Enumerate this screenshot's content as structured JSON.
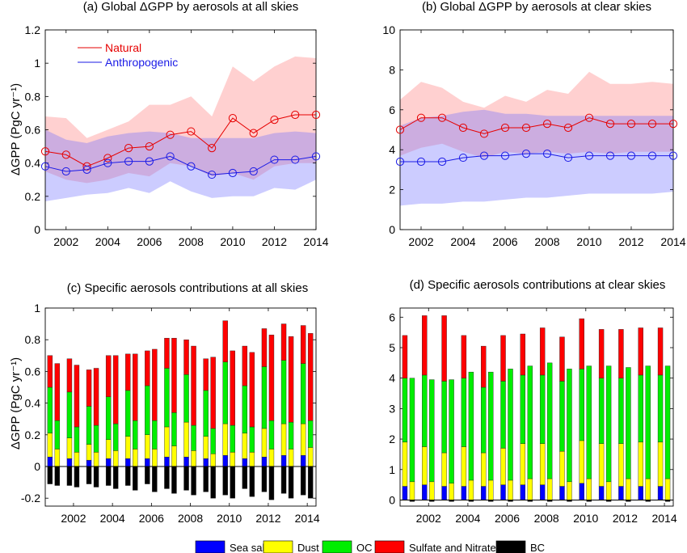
{
  "figure": {
    "legend_items": [
      {
        "label": "Sea salt",
        "color": "#0000ff"
      },
      {
        "label": "Dust",
        "color": "#ffff00"
      },
      {
        "label": "OC",
        "color": "#00ee00"
      },
      {
        "label": "Sulfate and Nitrate",
        "color": "#ff0000"
      },
      {
        "label": "BC",
        "color": "#000000"
      }
    ]
  },
  "chart_data": [
    {
      "panel": "a",
      "type": "line",
      "title": "(a) Global ΔGPP by aerosols at all skies",
      "ylabel": "ΔGPP (PgC yr⁻¹)",
      "xlabel": "",
      "xlim": [
        2001,
        2014
      ],
      "ylim": [
        0,
        1.2
      ],
      "xticks": [
        2002,
        2004,
        2006,
        2008,
        2010,
        2012,
        2014
      ],
      "yticks": [
        0,
        0.2,
        0.4,
        0.6,
        0.8,
        1,
        1.2
      ],
      "ytick_labels": [
        "0",
        "0.2",
        "0.4",
        "0.6",
        "0.8",
        "1",
        "1.2"
      ],
      "legend_position": "top-left",
      "x": [
        2001,
        2002,
        2003,
        2004,
        2005,
        2006,
        2007,
        2008,
        2009,
        2010,
        2011,
        2012,
        2013,
        2014
      ],
      "series": [
        {
          "name": "Natural",
          "color": "#e60000",
          "values": [
            0.47,
            0.45,
            0.38,
            0.43,
            0.49,
            0.5,
            0.57,
            0.59,
            0.49,
            0.67,
            0.58,
            0.66,
            0.69,
            0.69
          ],
          "upper": [
            0.68,
            0.67,
            0.55,
            0.6,
            0.65,
            0.75,
            0.75,
            0.8,
            0.68,
            0.98,
            0.89,
            0.98,
            1.04,
            1.03
          ],
          "lower": [
            0.35,
            0.3,
            0.28,
            0.3,
            0.34,
            0.32,
            0.4,
            0.38,
            0.32,
            0.34,
            0.3,
            0.38,
            0.4,
            0.4
          ]
        },
        {
          "name": "Anthropogenic",
          "color": "#1a1ae6",
          "values": [
            0.38,
            0.35,
            0.36,
            0.4,
            0.41,
            0.41,
            0.44,
            0.38,
            0.33,
            0.34,
            0.35,
            0.42,
            0.42,
            0.44
          ],
          "upper": [
            0.6,
            0.54,
            0.52,
            0.56,
            0.58,
            0.59,
            0.58,
            0.55,
            0.55,
            0.55,
            0.55,
            0.58,
            0.59,
            0.58
          ],
          "lower": [
            0.17,
            0.19,
            0.21,
            0.22,
            0.25,
            0.22,
            0.29,
            0.23,
            0.19,
            0.2,
            0.2,
            0.25,
            0.24,
            0.3
          ]
        }
      ]
    },
    {
      "panel": "b",
      "type": "line",
      "title": "(b) Global ΔGPP by aerosols at clear skies",
      "ylabel": "",
      "xlabel": "",
      "xlim": [
        2001,
        2014
      ],
      "ylim": [
        0,
        10
      ],
      "xticks": [
        2002,
        2004,
        2006,
        2008,
        2010,
        2012,
        2014
      ],
      "yticks": [
        0,
        2,
        4,
        6,
        8,
        10
      ],
      "ytick_labels": [
        "0",
        "2",
        "4",
        "6",
        "8",
        "10"
      ],
      "x": [
        2001,
        2002,
        2003,
        2004,
        2005,
        2006,
        2007,
        2008,
        2009,
        2010,
        2011,
        2012,
        2013,
        2014
      ],
      "series": [
        {
          "name": "Natural",
          "color": "#e60000",
          "values": [
            5.0,
            5.6,
            5.6,
            5.1,
            4.8,
            5.1,
            5.1,
            5.3,
            5.1,
            5.6,
            5.3,
            5.3,
            5.3,
            5.3
          ],
          "upper": [
            6.5,
            7.4,
            7.1,
            6.4,
            6.1,
            6.7,
            6.4,
            7.0,
            6.8,
            7.9,
            7.3,
            7.3,
            7.4,
            7.3
          ],
          "lower": [
            3.7,
            4.1,
            4.3,
            3.9,
            3.6,
            3.9,
            3.8,
            3.9,
            3.8,
            3.9,
            3.8,
            3.9,
            3.9,
            3.9
          ]
        },
        {
          "name": "Anthropogenic",
          "color": "#1a1ae6",
          "values": [
            3.4,
            3.4,
            3.4,
            3.6,
            3.7,
            3.7,
            3.8,
            3.8,
            3.6,
            3.7,
            3.7,
            3.7,
            3.7,
            3.7
          ],
          "upper": [
            5.2,
            5.6,
            5.7,
            5.9,
            6.0,
            5.8,
            5.8,
            5.7,
            5.7,
            5.7,
            5.7,
            5.7,
            5.7,
            5.7
          ],
          "lower": [
            1.2,
            1.3,
            1.3,
            1.4,
            1.4,
            1.5,
            1.6,
            1.6,
            1.7,
            1.8,
            1.8,
            1.8,
            1.8,
            1.9
          ]
        }
      ]
    },
    {
      "panel": "c",
      "type": "bar",
      "stacked": true,
      "title": "(c) Specific aerosols contributions at all skies",
      "ylabel": "ΔGPP (PgC yr⁻¹)",
      "xlabel": "",
      "xlim": [
        2000.55,
        2014.45
      ],
      "ylim": [
        -0.25,
        1.0
      ],
      "xticks": [
        2002,
        2004,
        2006,
        2008,
        2010,
        2012,
        2014
      ],
      "yticks": [
        -0.2,
        0,
        0.2,
        0.4,
        0.6,
        0.8,
        1
      ],
      "ytick_labels": [
        "-0.2",
        "0",
        "0.2",
        "0.4",
        "0.6",
        "0.8",
        "1"
      ],
      "x": [
        2001,
        2002,
        2003,
        2004,
        2005,
        2006,
        2007,
        2008,
        2009,
        2010,
        2011,
        2012,
        2013,
        2014
      ],
      "bars_per_year": [
        "Natural",
        "Anthropogenic"
      ],
      "series": [
        {
          "name": "Sea salt",
          "color": "#0000ff",
          "natural": [
            0.06,
            0.05,
            0.04,
            0.05,
            0.05,
            0.05,
            0.06,
            0.06,
            0.05,
            0.07,
            0.05,
            0.06,
            0.07,
            0.07
          ],
          "anthropogenic": [
            0,
            0,
            0,
            0,
            0,
            0,
            0,
            0,
            0,
            0,
            0,
            0,
            0,
            0
          ]
        },
        {
          "name": "Dust",
          "color": "#ffff00",
          "natural": [
            0.15,
            0.13,
            0.1,
            0.12,
            0.14,
            0.15,
            0.19,
            0.22,
            0.14,
            0.2,
            0.16,
            0.18,
            0.2,
            0.2
          ],
          "anthropogenic": [
            0.11,
            0.09,
            0.09,
            0.1,
            0.11,
            0.11,
            0.13,
            0.1,
            0.08,
            0.09,
            0.09,
            0.11,
            0.11,
            0.12
          ]
        },
        {
          "name": "OC",
          "color": "#00ee00",
          "natural": [
            0.29,
            0.29,
            0.24,
            0.27,
            0.29,
            0.31,
            0.37,
            0.3,
            0.29,
            0.39,
            0.3,
            0.39,
            0.4,
            0.38
          ],
          "anthropogenic": [
            0.18,
            0.16,
            0.17,
            0.17,
            0.18,
            0.18,
            0.21,
            0.16,
            0.16,
            0.17,
            0.16,
            0.18,
            0.17,
            0.17
          ],
          "natural_top": [
            0.5,
            0.47,
            0.38,
            0.44,
            0.48,
            0.51,
            0.62,
            0.58,
            0.48,
            0.66,
            0.51,
            0.63,
            0.67,
            0.65
          ],
          "anthropogenic_top": [
            0.29,
            0.25,
            0.26,
            0.27,
            0.29,
            0.29,
            0.34,
            0.26,
            0.24,
            0.26,
            0.25,
            0.29,
            0.28,
            0.29
          ]
        },
        {
          "name": "Sulfate and Nitrate",
          "color": "#ff0000",
          "natural_total": [
            0.7,
            0.68,
            0.61,
            0.7,
            0.71,
            0.73,
            0.81,
            0.8,
            0.68,
            0.92,
            0.76,
            0.87,
            0.9,
            0.89
          ],
          "anthropogenic_total": [
            0.65,
            0.64,
            0.62,
            0.7,
            0.71,
            0.74,
            0.81,
            0.76,
            0.69,
            0.73,
            0.72,
            0.83,
            0.82,
            0.84
          ]
        },
        {
          "name": "BC",
          "color": "#000000",
          "natural": [
            -0.11,
            -0.12,
            -0.11,
            -0.12,
            -0.12,
            -0.11,
            -0.14,
            -0.15,
            -0.16,
            -0.18,
            -0.14,
            -0.16,
            -0.17,
            -0.18
          ],
          "anthropogenic": [
            -0.12,
            -0.13,
            -0.13,
            -0.14,
            -0.15,
            -0.16,
            -0.17,
            -0.18,
            -0.2,
            -0.2,
            -0.19,
            -0.21,
            -0.2,
            -0.2
          ]
        }
      ]
    },
    {
      "panel": "d",
      "type": "bar",
      "stacked": true,
      "title": "(d) Specific aerosols contributions at clear skies",
      "ylabel": "",
      "xlabel": "",
      "xlim": [
        2000.55,
        2014.45
      ],
      "ylim": [
        -0.2,
        6.3
      ],
      "xticks": [
        2002,
        2004,
        2006,
        2008,
        2010,
        2012,
        2014
      ],
      "yticks": [
        0,
        1,
        2,
        3,
        4,
        5,
        6
      ],
      "ytick_labels": [
        "0",
        "1",
        "2",
        "3",
        "4",
        "5",
        "6"
      ],
      "x": [
        2001,
        2002,
        2003,
        2004,
        2005,
        2006,
        2007,
        2008,
        2009,
        2010,
        2011,
        2012,
        2013,
        2014
      ],
      "bars_per_year": [
        "Natural",
        "Anthropogenic"
      ],
      "series": [
        {
          "name": "Sea salt",
          "color": "#0000ff",
          "natural": [
            0.45,
            0.5,
            0.45,
            0.45,
            0.45,
            0.5,
            0.5,
            0.5,
            0.45,
            0.55,
            0.45,
            0.45,
            0.45,
            0.45
          ],
          "anthropogenic": [
            0,
            0,
            0,
            0,
            0,
            0,
            0,
            0,
            0,
            0,
            0,
            0,
            0,
            0
          ]
        },
        {
          "name": "Dust",
          "color": "#ffff00",
          "natural_top": [
            1.9,
            1.75,
            1.55,
            1.75,
            1.55,
            1.7,
            1.85,
            1.85,
            1.6,
            1.95,
            1.85,
            1.85,
            1.9,
            1.9
          ],
          "anthropogenic_top": [
            0.6,
            0.6,
            0.55,
            0.65,
            0.65,
            0.65,
            0.7,
            0.7,
            0.6,
            0.7,
            0.6,
            0.7,
            0.7,
            0.7
          ]
        },
        {
          "name": "OC",
          "color": "#00ee00",
          "natural_top": [
            4.0,
            4.1,
            3.9,
            4.0,
            3.7,
            3.9,
            4.1,
            4.1,
            3.9,
            4.3,
            4.0,
            4.0,
            4.1,
            4.1
          ],
          "anthropogenic_top": [
            4.0,
            3.95,
            3.95,
            4.2,
            4.2,
            4.3,
            4.4,
            4.5,
            4.3,
            4.4,
            4.4,
            4.35,
            4.4,
            4.4
          ]
        },
        {
          "name": "Sulfate and Nitrate",
          "color": "#ff0000",
          "natural_total": [
            5.4,
            6.05,
            6.05,
            5.4,
            5.05,
            5.4,
            5.45,
            5.65,
            5.35,
            5.95,
            5.6,
            5.6,
            5.65,
            5.65
          ],
          "anthropogenic_total": [
            4.0,
            3.95,
            3.95,
            4.2,
            4.2,
            4.3,
            4.4,
            4.5,
            4.3,
            4.4,
            4.4,
            4.35,
            4.4,
            4.4
          ]
        },
        {
          "name": "BC",
          "color": "#000000",
          "natural": [
            0,
            0,
            0,
            0,
            0,
            0,
            0,
            0,
            0,
            0,
            0,
            0,
            0,
            0
          ],
          "anthropogenic": [
            -0.05,
            -0.05,
            -0.05,
            -0.05,
            -0.05,
            -0.05,
            -0.05,
            -0.05,
            -0.05,
            -0.05,
            -0.05,
            -0.05,
            -0.05,
            -0.05
          ]
        }
      ]
    }
  ]
}
